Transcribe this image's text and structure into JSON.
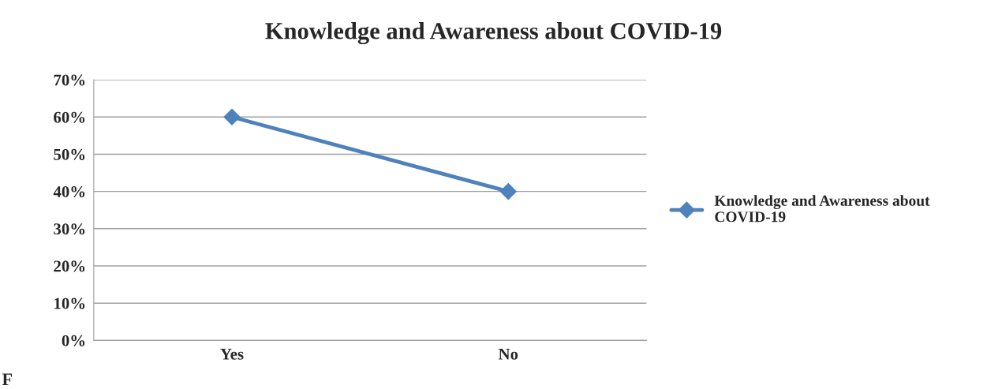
{
  "chart_data": {
    "type": "line",
    "title": "Knowledge and Awareness about COVID-19",
    "categories": [
      "Yes",
      "No"
    ],
    "series": [
      {
        "name": "Knowledge and Awareness about COVID-19",
        "color": "#4f81bd",
        "values": [
          60,
          40
        ]
      }
    ],
    "ylim": [
      0,
      70
    ],
    "yticks": [
      {
        "value": 0,
        "label": "0%"
      },
      {
        "value": 10,
        "label": "10%"
      },
      {
        "value": 20,
        "label": "20%"
      },
      {
        "value": 30,
        "label": "30%"
      },
      {
        "value": 40,
        "label": "40%"
      },
      {
        "value": 50,
        "label": "50%"
      },
      {
        "value": 60,
        "label": "60%"
      },
      {
        "value": 70,
        "label": "70%"
      }
    ],
    "grid": "y",
    "legend": "right",
    "marker": "diamond",
    "line_style": "solid",
    "annotations": [
      "F"
    ]
  }
}
